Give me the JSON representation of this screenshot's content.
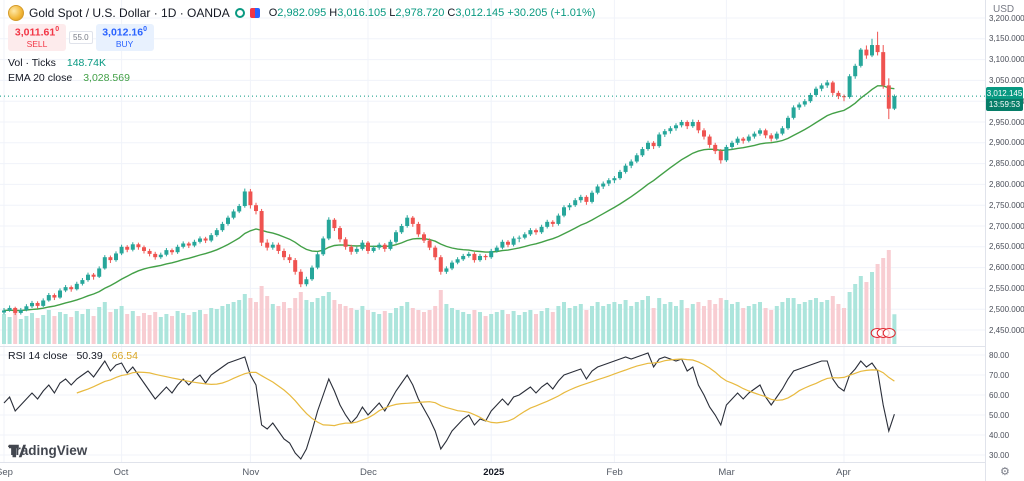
{
  "header": {
    "symbol_line": "Gold Spot / U.S. Dollar · 1D · OANDA",
    "ohlc": {
      "o_label": "O",
      "o": "2,982.095",
      "h_label": "H",
      "h": "3,016.105",
      "l_label": "L",
      "l": "2,978.720",
      "c_label": "C",
      "c": "3,012.145",
      "change": "+30.205 (+1.01%)"
    },
    "sell": {
      "price": "3,011.61",
      "sup": "0",
      "label": "SELL"
    },
    "spread": "55.0",
    "buy": {
      "price": "3,012.16",
      "sup": "0",
      "label": "BUY"
    }
  },
  "indicators": {
    "volume": {
      "title": "Vol · Ticks",
      "value": "148.74K"
    },
    "ema": {
      "title": "EMA 20 close",
      "value": "3,028.569"
    },
    "rsi": {
      "title": "RSI 14 close",
      "value": "50.39",
      "signal": "66.54"
    }
  },
  "axes": {
    "currency": "USD",
    "price_ticks": [
      "3,200.000",
      "3,150.000",
      "3,100.000",
      "3,050.000",
      "3,000.000",
      "2,950.000",
      "2,900.000",
      "2,850.000",
      "2,800.000",
      "2,750.000",
      "2,700.000",
      "2,650.000",
      "2,600.000",
      "2,550.000",
      "2,500.000",
      "2,450.000"
    ],
    "rsi_ticks": [
      "80.00",
      "70.00",
      "60.00",
      "50.00",
      "40.00",
      "30.00"
    ],
    "last_price": {
      "value": "3,012.145",
      "countdown": "13:59:53"
    },
    "gear": "⚙"
  },
  "footer": {
    "logo_text": "TradingView"
  },
  "colors": {
    "up": "#26a69a",
    "down": "#ef5350",
    "accent_up_text": "#089981",
    "sell_red": "#f23645",
    "buy_blue": "#2962ff",
    "vol_up": "#ace5dc",
    "vol_down": "#f8cdd2",
    "ema": "#43a047",
    "rsi_line": "#2a2e39",
    "rsi_signal": "#e8ba40",
    "grid": "#f0f3fa",
    "last_price_line": "#089981",
    "oanda_red": "#e0242d"
  },
  "chart_data": {
    "type": "candlestick",
    "title": "Gold Spot / U.S. Dollar 1D OANDA",
    "price_axis": {
      "min": 2450,
      "max": 3200,
      "step": 50
    },
    "rsi_axis": {
      "min": 30,
      "max": 80,
      "step": 10
    },
    "ema_period": 20,
    "rsi_smoothing_period": 14,
    "last_price": 3012.145,
    "months": [
      {
        "label": "Sep",
        "index": 0
      },
      {
        "label": "Oct",
        "index": 21
      },
      {
        "label": "Nov",
        "index": 44
      },
      {
        "label": "Dec",
        "index": 65
      },
      {
        "label": "2025",
        "index": 87
      },
      {
        "label": "Feb",
        "index": 109
      },
      {
        "label": "Mar",
        "index": 129
      },
      {
        "label": "Apr",
        "index": 150
      }
    ],
    "candles": [
      [
        2492,
        2503,
        2488,
        2497
      ],
      [
        2497,
        2509,
        2494,
        2503
      ],
      [
        2503,
        2506,
        2486,
        2491
      ],
      [
        2491,
        2503,
        2487,
        2498
      ],
      [
        2498,
        2512,
        2495,
        2507
      ],
      [
        2507,
        2520,
        2503,
        2515
      ],
      [
        2515,
        2519,
        2502,
        2508
      ],
      [
        2508,
        2526,
        2505,
        2521
      ],
      [
        2521,
        2539,
        2518,
        2534
      ],
      [
        2534,
        2538,
        2522,
        2528
      ],
      [
        2528,
        2550,
        2525,
        2545
      ],
      [
        2545,
        2558,
        2541,
        2553
      ],
      [
        2553,
        2557,
        2542,
        2548
      ],
      [
        2548,
        2566,
        2545,
        2561
      ],
      [
        2561,
        2575,
        2557,
        2570
      ],
      [
        2570,
        2588,
        2566,
        2583
      ],
      [
        2583,
        2587,
        2571,
        2578
      ],
      [
        2578,
        2603,
        2575,
        2598
      ],
      [
        2598,
        2630,
        2595,
        2625
      ],
      [
        2625,
        2629,
        2611,
        2618
      ],
      [
        2618,
        2639,
        2614,
        2634
      ],
      [
        2634,
        2655,
        2630,
        2650
      ],
      [
        2650,
        2654,
        2637,
        2643
      ],
      [
        2643,
        2661,
        2639,
        2656
      ],
      [
        2656,
        2660,
        2643,
        2649
      ],
      [
        2649,
        2653,
        2634,
        2640
      ],
      [
        2640,
        2645,
        2627,
        2633
      ],
      [
        2633,
        2638,
        2619,
        2625
      ],
      [
        2625,
        2636,
        2621,
        2631
      ],
      [
        2631,
        2647,
        2627,
        2642
      ],
      [
        2642,
        2646,
        2631,
        2637
      ],
      [
        2637,
        2655,
        2633,
        2650
      ],
      [
        2650,
        2663,
        2646,
        2658
      ],
      [
        2658,
        2662,
        2647,
        2653
      ],
      [
        2653,
        2667,
        2649,
        2662
      ],
      [
        2662,
        2675,
        2658,
        2670
      ],
      [
        2670,
        2674,
        2659,
        2665
      ],
      [
        2665,
        2683,
        2661,
        2678
      ],
      [
        2678,
        2695,
        2674,
        2690
      ],
      [
        2690,
        2710,
        2686,
        2705
      ],
      [
        2705,
        2725,
        2701,
        2720
      ],
      [
        2720,
        2740,
        2716,
        2735
      ],
      [
        2735,
        2753,
        2731,
        2748
      ],
      [
        2748,
        2790,
        2744,
        2783
      ],
      [
        2783,
        2789,
        2742,
        2750
      ],
      [
        2750,
        2756,
        2728,
        2736
      ],
      [
        2736,
        2741,
        2652,
        2660
      ],
      [
        2660,
        2668,
        2641,
        2648
      ],
      [
        2648,
        2661,
        2643,
        2655
      ],
      [
        2655,
        2660,
        2633,
        2640
      ],
      [
        2640,
        2646,
        2618,
        2625
      ],
      [
        2625,
        2632,
        2611,
        2618
      ],
      [
        2618,
        2623,
        2583,
        2590
      ],
      [
        2590,
        2596,
        2553,
        2560
      ],
      [
        2560,
        2578,
        2555,
        2572
      ],
      [
        2572,
        2605,
        2568,
        2600
      ],
      [
        2600,
        2637,
        2596,
        2632
      ],
      [
        2632,
        2675,
        2628,
        2670
      ],
      [
        2670,
        2721,
        2666,
        2715
      ],
      [
        2715,
        2719,
        2688,
        2695
      ],
      [
        2695,
        2700,
        2661,
        2668
      ],
      [
        2668,
        2673,
        2643,
        2650
      ],
      [
        2650,
        2655,
        2631,
        2638
      ],
      [
        2638,
        2650,
        2633,
        2645
      ],
      [
        2645,
        2666,
        2641,
        2660
      ],
      [
        2660,
        2664,
        2633,
        2640
      ],
      [
        2640,
        2653,
        2636,
        2648
      ],
      [
        2648,
        2660,
        2643,
        2655
      ],
      [
        2655,
        2659,
        2638,
        2645
      ],
      [
        2645,
        2667,
        2641,
        2662
      ],
      [
        2662,
        2690,
        2658,
        2685
      ],
      [
        2685,
        2705,
        2681,
        2700
      ],
      [
        2700,
        2726,
        2696,
        2720
      ],
      [
        2720,
        2724,
        2698,
        2705
      ],
      [
        2705,
        2710,
        2674,
        2680
      ],
      [
        2680,
        2685,
        2659,
        2665
      ],
      [
        2665,
        2670,
        2642,
        2648
      ],
      [
        2648,
        2653,
        2618,
        2625
      ],
      [
        2625,
        2630,
        2583,
        2590
      ],
      [
        2590,
        2603,
        2585,
        2598
      ],
      [
        2598,
        2617,
        2594,
        2612
      ],
      [
        2612,
        2625,
        2608,
        2620
      ],
      [
        2620,
        2633,
        2616,
        2628
      ],
      [
        2628,
        2638,
        2624,
        2633
      ],
      [
        2633,
        2637,
        2612,
        2618
      ],
      [
        2618,
        2633,
        2614,
        2628
      ],
      [
        2628,
        2632,
        2618,
        2625
      ],
      [
        2625,
        2645,
        2621,
        2640
      ],
      [
        2640,
        2653,
        2636,
        2648
      ],
      [
        2648,
        2667,
        2644,
        2662
      ],
      [
        2662,
        2666,
        2649,
        2655
      ],
      [
        2655,
        2675,
        2651,
        2670
      ],
      [
        2670,
        2677,
        2661,
        2672
      ],
      [
        2672,
        2685,
        2668,
        2680
      ],
      [
        2680,
        2695,
        2676,
        2690
      ],
      [
        2690,
        2694,
        2679,
        2685
      ],
      [
        2685,
        2703,
        2681,
        2698
      ],
      [
        2698,
        2715,
        2694,
        2710
      ],
      [
        2710,
        2714,
        2698,
        2705
      ],
      [
        2705,
        2730,
        2701,
        2725
      ],
      [
        2725,
        2750,
        2721,
        2745
      ],
      [
        2745,
        2755,
        2738,
        2750
      ],
      [
        2750,
        2767,
        2746,
        2762
      ],
      [
        2762,
        2775,
        2756,
        2770
      ],
      [
        2770,
        2774,
        2751,
        2758
      ],
      [
        2758,
        2785,
        2754,
        2780
      ],
      [
        2780,
        2800,
        2776,
        2795
      ],
      [
        2795,
        2807,
        2789,
        2802
      ],
      [
        2802,
        2815,
        2796,
        2810
      ],
      [
        2810,
        2820,
        2803,
        2815
      ],
      [
        2815,
        2835,
        2811,
        2830
      ],
      [
        2830,
        2850,
        2826,
        2845
      ],
      [
        2845,
        2860,
        2839,
        2855
      ],
      [
        2855,
        2875,
        2851,
        2870
      ],
      [
        2870,
        2890,
        2866,
        2885
      ],
      [
        2885,
        2905,
        2881,
        2900
      ],
      [
        2900,
        2904,
        2885,
        2892
      ],
      [
        2892,
        2925,
        2888,
        2920
      ],
      [
        2920,
        2933,
        2914,
        2928
      ],
      [
        2928,
        2940,
        2922,
        2935
      ],
      [
        2935,
        2947,
        2929,
        2942
      ],
      [
        2942,
        2955,
        2937,
        2950
      ],
      [
        2950,
        2954,
        2933,
        2940
      ],
      [
        2940,
        2956,
        2936,
        2950
      ],
      [
        2950,
        2955,
        2923,
        2930
      ],
      [
        2930,
        2935,
        2908,
        2915
      ],
      [
        2915,
        2920,
        2888,
        2895
      ],
      [
        2895,
        2900,
        2873,
        2880
      ],
      [
        2880,
        2885,
        2850,
        2858
      ],
      [
        2858,
        2895,
        2854,
        2890
      ],
      [
        2890,
        2905,
        2884,
        2900
      ],
      [
        2900,
        2915,
        2895,
        2910
      ],
      [
        2910,
        2914,
        2898,
        2905
      ],
      [
        2905,
        2920,
        2901,
        2915
      ],
      [
        2915,
        2927,
        2910,
        2922
      ],
      [
        2922,
        2935,
        2917,
        2930
      ],
      [
        2930,
        2934,
        2911,
        2918
      ],
      [
        2918,
        2923,
        2903,
        2910
      ],
      [
        2910,
        2927,
        2906,
        2922
      ],
      [
        2922,
        2940,
        2918,
        2935
      ],
      [
        2935,
        2965,
        2931,
        2960
      ],
      [
        2960,
        2990,
        2956,
        2985
      ],
      [
        2985,
        2997,
        2979,
        2992
      ],
      [
        2992,
        3005,
        2987,
        3000
      ],
      [
        3000,
        3020,
        2996,
        3015
      ],
      [
        3015,
        3035,
        3011,
        3030
      ],
      [
        3030,
        3043,
        3024,
        3038
      ],
      [
        3038,
        3051,
        3032,
        3045
      ],
      [
        3045,
        3049,
        3014,
        3020
      ],
      [
        3020,
        3025,
        3005,
        3012
      ],
      [
        3012,
        3016,
        3000,
        3010
      ],
      [
        3010,
        3065,
        3006,
        3060
      ],
      [
        3060,
        3090,
        3054,
        3085
      ],
      [
        3085,
        3128,
        3081,
        3124
      ],
      [
        3124,
        3134,
        3102,
        3110
      ],
      [
        3110,
        3150,
        3106,
        3135
      ],
      [
        3135,
        3167,
        3110,
        3118
      ],
      [
        3118,
        3135,
        3030,
        3038
      ],
      [
        3038,
        3055,
        2957,
        2982
      ],
      [
        2982.095,
        3016.105,
        2978.72,
        3012.145
      ]
    ],
    "volumes_k": [
      150,
      135,
      160,
      125,
      140,
      155,
      130,
      145,
      170,
      140,
      160,
      150,
      135,
      165,
      150,
      175,
      140,
      185,
      210,
      160,
      175,
      190,
      150,
      165,
      140,
      155,
      145,
      160,
      135,
      150,
      140,
      165,
      155,
      145,
      160,
      170,
      150,
      180,
      175,
      190,
      200,
      210,
      220,
      250,
      230,
      210,
      290,
      240,
      200,
      190,
      210,
      180,
      230,
      260,
      220,
      210,
      230,
      240,
      260,
      220,
      200,
      190,
      180,
      170,
      190,
      170,
      160,
      150,
      165,
      155,
      180,
      190,
      210,
      180,
      170,
      160,
      170,
      190,
      270,
      200,
      180,
      170,
      160,
      150,
      170,
      160,
      140,
      150,
      160,
      170,
      150,
      165,
      145,
      160,
      170,
      150,
      165,
      180,
      160,
      190,
      210,
      180,
      190,
      200,
      170,
      190,
      210,
      190,
      200,
      210,
      200,
      220,
      190,
      210,
      220,
      240,
      180,
      230,
      200,
      210,
      190,
      220,
      180,
      200,
      210,
      190,
      220,
      200,
      230,
      220,
      200,
      210,
      180,
      190,
      200,
      210,
      180,
      170,
      190,
      210,
      230,
      230,
      200,
      210,
      220,
      230,
      210,
      220,
      240,
      200,
      180,
      260,
      300,
      340,
      310,
      360,
      400,
      430,
      470,
      148.74
    ],
    "rsi": [
      56,
      59,
      52,
      55,
      58,
      61,
      58,
      62,
      65,
      61,
      66,
      68,
      65,
      68,
      70,
      72,
      69,
      73,
      77,
      72,
      75,
      76,
      71,
      74,
      70,
      66,
      62,
      58,
      61,
      64,
      61,
      65,
      68,
      65,
      68,
      70,
      66,
      70,
      72,
      74,
      76,
      77,
      78,
      79,
      70,
      65,
      45,
      43,
      46,
      42,
      38,
      36,
      31,
      28,
      33,
      42,
      52,
      60,
      68,
      62,
      55,
      50,
      46,
      49,
      54,
      50,
      53,
      56,
      52,
      57,
      62,
      66,
      70,
      65,
      58,
      53,
      48,
      42,
      33,
      37,
      42,
      45,
      48,
      50,
      45,
      48,
      47,
      52,
      55,
      58,
      55,
      59,
      60,
      62,
      64,
      61,
      64,
      66,
      63,
      67,
      70,
      71,
      72,
      73,
      68,
      72,
      74,
      75,
      76,
      77,
      78,
      79,
      78,
      79,
      80,
      81,
      74,
      78,
      79,
      78,
      77,
      78,
      72,
      74,
      65,
      60,
      54,
      50,
      45,
      55,
      58,
      61,
      58,
      61,
      63,
      65,
      59,
      55,
      59,
      63,
      68,
      72,
      73,
      74,
      75,
      76,
      77,
      77,
      68,
      64,
      62,
      70,
      73,
      77,
      74,
      76,
      72,
      55,
      42,
      50.39
    ]
  }
}
